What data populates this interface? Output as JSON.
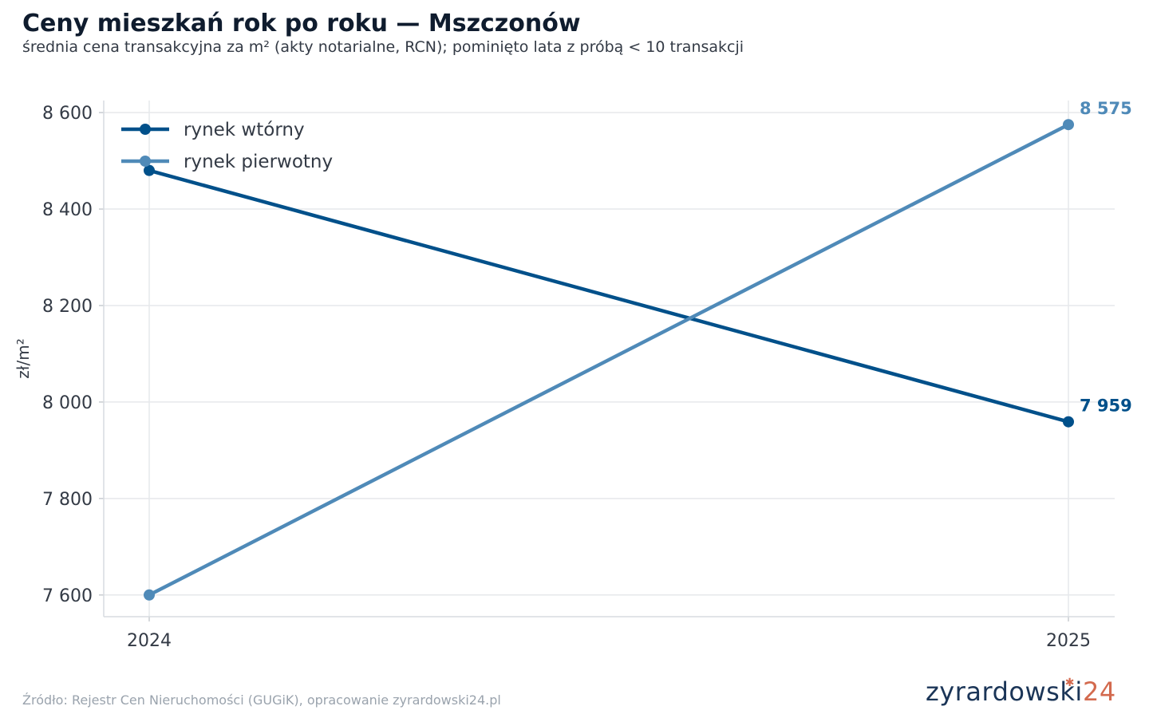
{
  "title": "Ceny mieszkań rok po roku — Mszczonów",
  "subtitle": "średnia cena transakcyjna za m² (akty notarialne, RCN); pominięto lata z próbą < 10 transakcji",
  "source": "Źródło: Rejestr Cen Nieruchomości (GUGiK), opracowanie zyrardowski24.pl",
  "logo": {
    "text": "zyrardowski",
    "number": "24"
  },
  "colors": {
    "secondary": "#00508a",
    "primary": "#4f8ab8",
    "grid": "#e6e8eb",
    "text": "#333a45"
  },
  "chart_data": {
    "type": "line",
    "title": "Ceny mieszkań rok po roku — Mszczonów",
    "subtitle": "średnia cena transakcyjna za m² (akty notarialne, RCN); pominięto lata z próbą < 10 transakcji",
    "xlabel": "",
    "ylabel": "zł/m²",
    "x": [
      "2024",
      "2025"
    ],
    "y_ticks": [
      7600,
      7800,
      8000,
      8200,
      8400,
      8600
    ],
    "y_tick_labels": [
      "7 600",
      "7 800",
      "8 000",
      "8 200",
      "8 400",
      "8 600"
    ],
    "ylim": [
      7555,
      8625
    ],
    "grid": true,
    "legend_position": "top-left",
    "series": [
      {
        "name": "rynek wtórny",
        "values": [
          8480,
          7959
        ],
        "color": "#00508a",
        "end_label": "7 959"
      },
      {
        "name": "rynek pierwotny",
        "values": [
          7600,
          8575
        ],
        "color": "#4f8ab8",
        "end_label": "8 575"
      }
    ]
  }
}
